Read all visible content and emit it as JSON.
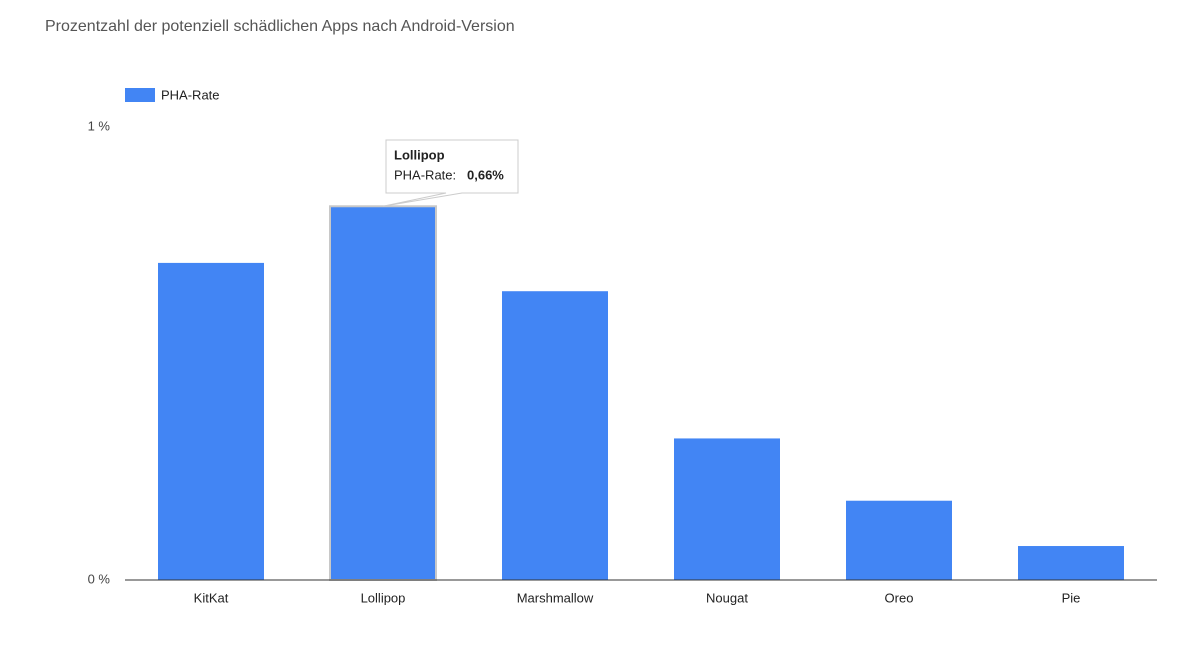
{
  "chart_data": {
    "type": "bar",
    "title": "Prozentzahl der potenziell schädlichen Apps nach Android-Version",
    "categories": [
      "KitKat",
      "Lollipop",
      "Marshmallow",
      "Nougat",
      "Oreo",
      "Pie"
    ],
    "series": [
      {
        "name": "PHA-Rate",
        "color": "#4285f4",
        "values": [
          0.56,
          0.66,
          0.51,
          0.25,
          0.14,
          0.06
        ]
      }
    ],
    "ylim": [
      0,
      0.8
    ],
    "yticks": [
      {
        "value": 0,
        "label": "0 %"
      },
      {
        "value": 0.8,
        "label": "1 %"
      }
    ],
    "legend": "top-left",
    "tooltip": {
      "label": "PHA-Rate:",
      "value_label": "0,66%"
    }
  }
}
